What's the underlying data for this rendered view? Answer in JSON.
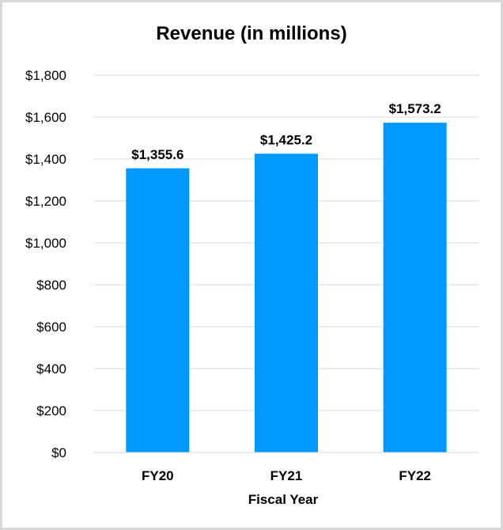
{
  "chart_data": {
    "type": "bar",
    "title": "Revenue (in millions)",
    "xlabel": "Fiscal Year",
    "ylabel": "",
    "categories": [
      "FY20",
      "FY21",
      "FY22"
    ],
    "values": [
      1355.6,
      1425.2,
      1573.2
    ],
    "data_labels": [
      "$1,355.6",
      "$1,425.2",
      "$1,573.2"
    ],
    "ylim": [
      0,
      1800
    ],
    "yticks": [
      0,
      200,
      400,
      600,
      800,
      1000,
      1200,
      1400,
      1600,
      1800
    ],
    "ytick_labels": [
      "$0",
      "$200",
      "$400",
      "$600",
      "$800",
      "$1,000",
      "$1,200",
      "$1,400",
      "$1,600",
      "$1,800"
    ],
    "grid": true,
    "legend": "none",
    "bar_color": "#0099ff"
  }
}
